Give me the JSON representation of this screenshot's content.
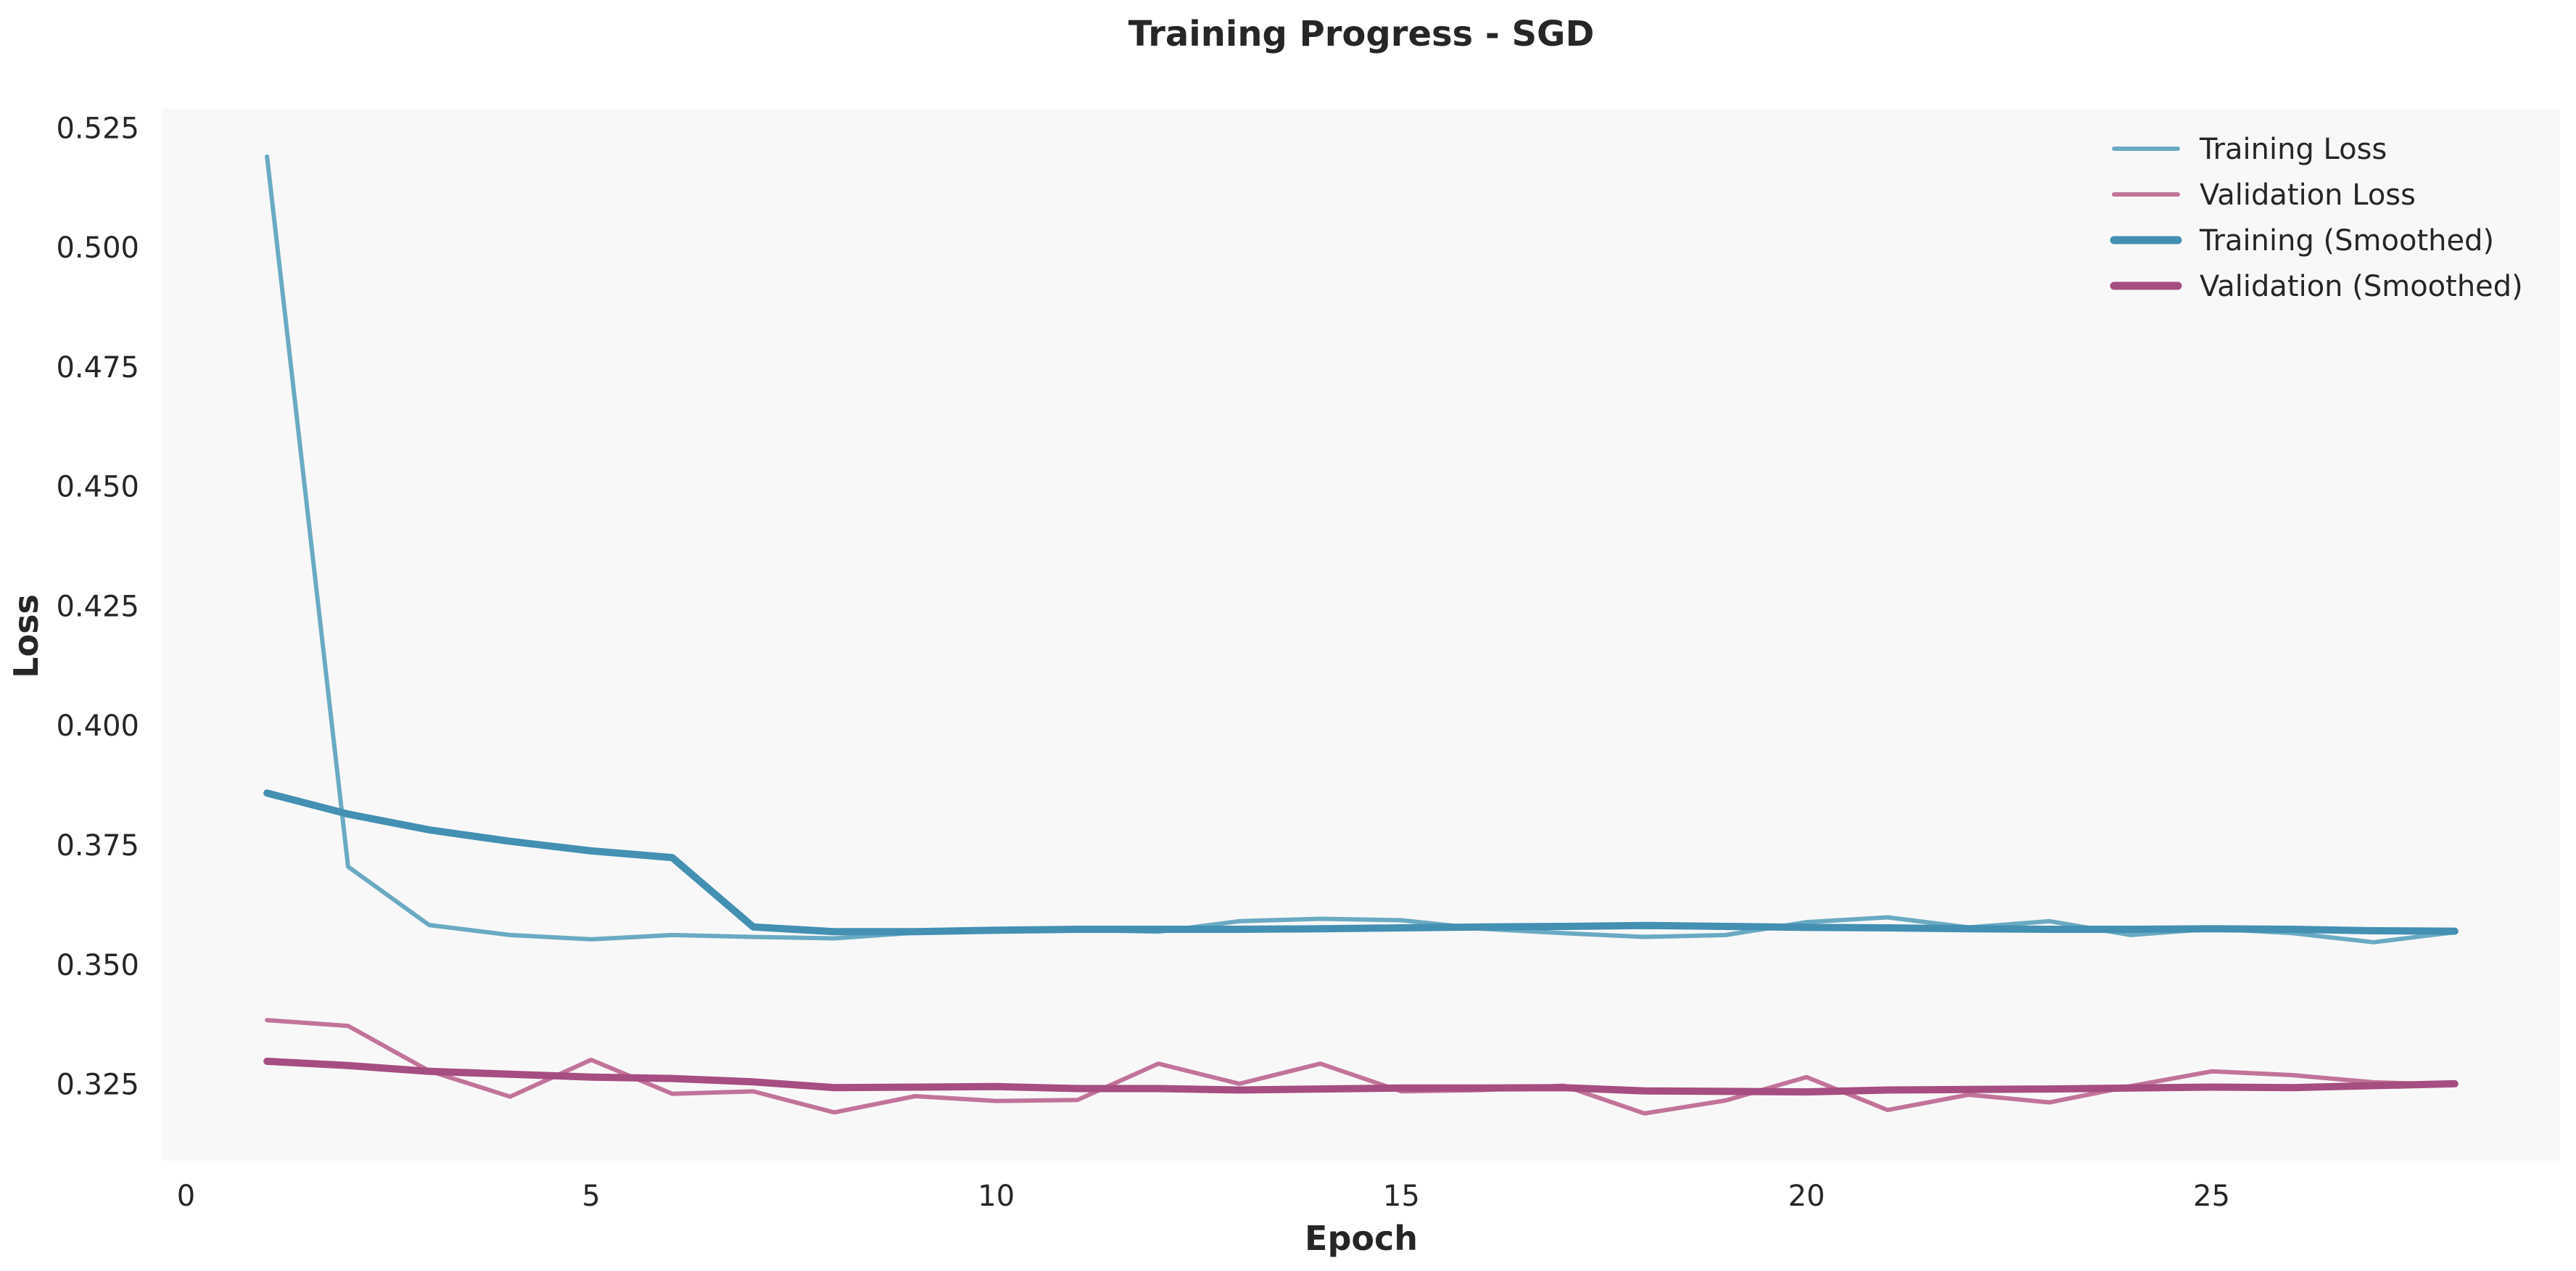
{
  "chart_data": {
    "type": "line",
    "title": "Training Progress - SGD",
    "xlabel": "Epoch",
    "ylabel": "Loss",
    "xlim": [
      -0.3,
      29.3
    ],
    "ylim": [
      0.309,
      0.529
    ],
    "grid": false,
    "legend_position": "top-right",
    "x_ticks": [
      0,
      5,
      10,
      15,
      20,
      25
    ],
    "x_tick_labels": [
      "0",
      "5",
      "10",
      "15",
      "20",
      "25"
    ],
    "y_ticks": [
      0.325,
      0.35,
      0.375,
      0.4,
      0.425,
      0.45,
      0.475,
      0.5,
      0.525
    ],
    "y_tick_labels": [
      "0.325",
      "0.350",
      "0.375",
      "0.400",
      "0.425",
      "0.450",
      "0.475",
      "0.500",
      "0.525"
    ],
    "x": [
      1,
      2,
      3,
      4,
      5,
      6,
      7,
      8,
      9,
      10,
      11,
      12,
      13,
      14,
      15,
      16,
      17,
      18,
      19,
      20,
      21,
      22,
      23,
      24,
      25,
      26,
      27,
      28
    ],
    "series": [
      {
        "name": "Training Loss",
        "color": "#6aaac3",
        "style": "thin",
        "values": [
          0.519,
          0.3705,
          0.3583,
          0.3562,
          0.3553,
          0.3562,
          0.3558,
          0.3555,
          0.3567,
          0.357,
          0.3573,
          0.3569,
          0.3591,
          0.3596,
          0.3593,
          0.3575,
          0.3566,
          0.3558,
          0.3562,
          0.3589,
          0.3599,
          0.3578,
          0.3591,
          0.3562,
          0.3575,
          0.3566,
          0.3547,
          0.3568
        ]
      },
      {
        "name": "Validation Loss",
        "color": "#c27399",
        "style": "thin",
        "values": [
          0.3384,
          0.3372,
          0.3278,
          0.3224,
          0.3301,
          0.323,
          0.3235,
          0.3191,
          0.3225,
          0.3215,
          0.3217,
          0.3293,
          0.3251,
          0.3293,
          0.3235,
          0.3238,
          0.3247,
          0.3189,
          0.3216,
          0.3265,
          0.3196,
          0.3228,
          0.3212,
          0.3246,
          0.3277,
          0.3269,
          0.3254,
          0.3249
        ]
      },
      {
        "name": "Training (Smoothed)",
        "color": "#4390b3",
        "style": "thick",
        "values": [
          0.3859,
          0.3815,
          0.3782,
          0.3758,
          0.3738,
          0.3724,
          0.3579,
          0.3569,
          0.3569,
          0.3572,
          0.3574,
          0.3574,
          0.3574,
          0.3575,
          0.3577,
          0.3579,
          0.358,
          0.3582,
          0.358,
          0.3578,
          0.3577,
          0.3575,
          0.3574,
          0.3574,
          0.3575,
          0.3574,
          0.3571,
          0.357
        ]
      },
      {
        "name": "Validation (Smoothed)",
        "color": "#a64d81",
        "style": "thick",
        "values": [
          0.3298,
          0.3289,
          0.3277,
          0.3271,
          0.3265,
          0.3262,
          0.3255,
          0.3243,
          0.3244,
          0.3245,
          0.3241,
          0.3241,
          0.3238,
          0.324,
          0.3242,
          0.3242,
          0.3243,
          0.3236,
          0.3235,
          0.3234,
          0.3238,
          0.3239,
          0.324,
          0.3242,
          0.3244,
          0.3243,
          0.3247,
          0.3251
        ]
      }
    ]
  }
}
